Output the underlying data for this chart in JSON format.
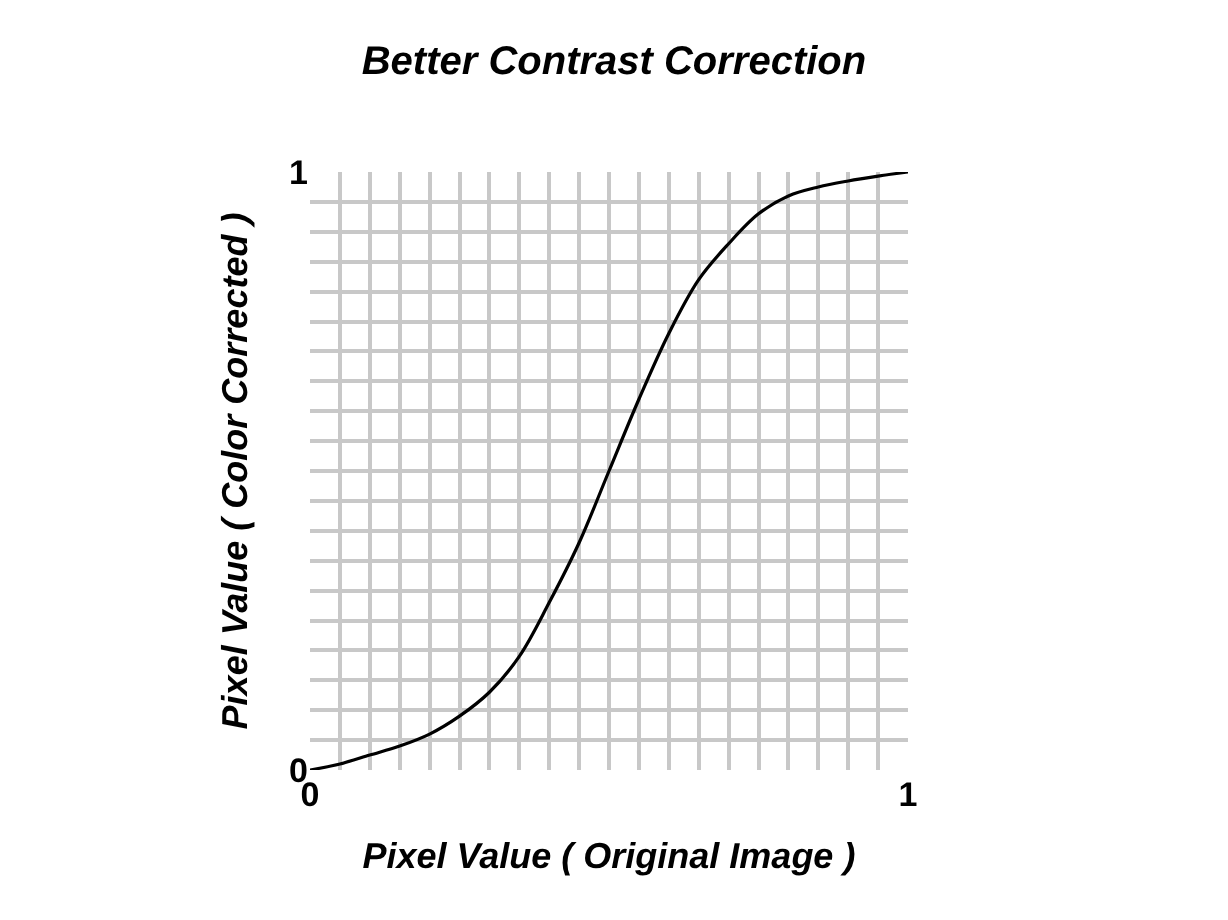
{
  "chart_data": {
    "type": "line",
    "title": "Better Contrast Correction",
    "xlabel": "Pixel Value ( Original Image )",
    "ylabel": "Pixel Value ( Color Corrected )",
    "x": [
      0,
      0.05,
      0.1,
      0.15,
      0.2,
      0.25,
      0.3,
      0.35,
      0.4,
      0.45,
      0.5,
      0.55,
      0.6,
      0.65,
      0.7,
      0.75,
      0.8,
      0.85,
      0.9,
      0.95,
      1
    ],
    "series": [
      {
        "color": "#000000",
        "values": [
          0,
          0.01,
          0.025,
          0.04,
          0.06,
          0.09,
          0.13,
          0.19,
          0.28,
          0.38,
          0.5,
          0.62,
          0.73,
          0.82,
          0.88,
          0.93,
          0.96,
          0.975,
          0.985,
          0.993,
          1
        ]
      }
    ],
    "xlim": [
      0,
      1
    ],
    "ylim": [
      0,
      1
    ],
    "xticks": [
      0,
      {
        "value": 0.05,
        "label": null
      },
      {
        "value": 0.1,
        "label": null
      },
      {
        "value": 0.15,
        "label": null
      },
      {
        "value": 0.2,
        "label": null
      },
      {
        "value": 0.25,
        "label": null
      },
      {
        "value": 0.3,
        "label": null
      },
      {
        "value": 0.35,
        "label": null
      },
      {
        "value": 0.4,
        "label": null
      },
      {
        "value": 0.45,
        "label": null
      },
      {
        "value": 0.5,
        "label": null
      },
      {
        "value": 0.55,
        "label": null
      },
      {
        "value": 0.6,
        "label": null
      },
      {
        "value": 0.65,
        "label": null
      },
      {
        "value": 0.7,
        "label": null
      },
      {
        "value": 0.75,
        "label": null
      },
      {
        "value": 0.8,
        "label": null
      },
      {
        "value": 0.85,
        "label": null
      },
      {
        "value": 0.9,
        "label": null
      },
      {
        "value": 0.95,
        "label": null
      },
      1
    ],
    "yticks": [
      0,
      {
        "value": 0.05,
        "label": null
      },
      {
        "value": 0.1,
        "label": null
      },
      {
        "value": 0.15,
        "label": null
      },
      {
        "value": 0.2,
        "label": null
      },
      {
        "value": 0.25,
        "label": null
      },
      {
        "value": 0.3,
        "label": null
      },
      {
        "value": 0.35,
        "label": null
      },
      {
        "value": 0.4,
        "label": null
      },
      {
        "value": 0.45,
        "label": null
      },
      {
        "value": 0.5,
        "label": null
      },
      {
        "value": 0.55,
        "label": null
      },
      {
        "value": 0.6,
        "label": null
      },
      {
        "value": 0.65,
        "label": null
      },
      {
        "value": 0.7,
        "label": null
      },
      {
        "value": 0.75,
        "label": null
      },
      {
        "value": 0.8,
        "label": null
      },
      {
        "value": 0.85,
        "label": null
      },
      {
        "value": 0.9,
        "label": null
      },
      {
        "value": 0.95,
        "label": null
      },
      1
    ],
    "grid": true,
    "marker": "none",
    "line_style": "solid"
  }
}
